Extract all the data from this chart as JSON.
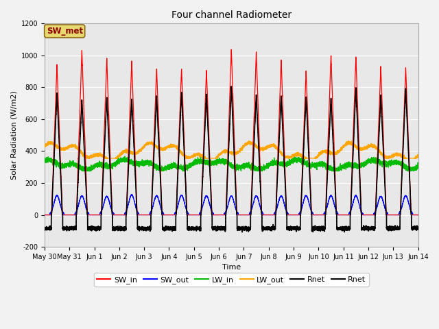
{
  "title": "Four channel Radiometer",
  "xlabel": "Time",
  "ylabel": "Solar Radiation (W/m2)",
  "ylim": [
    -200,
    1200
  ],
  "fig_facecolor": "#f2f2f2",
  "axes_facecolor": "#e8e8e8",
  "annotation_text": "SW_met",
  "annotation_fg": "#8b0000",
  "annotation_bg": "#e8d870",
  "annotation_border": "#8b6914",
  "legend_entries": [
    "SW_in",
    "SW_out",
    "LW_in",
    "LW_out",
    "Rnet",
    "Rnet"
  ],
  "legend_colors": [
    "#ff0000",
    "#0000ff",
    "#00bb00",
    "#ffa500",
    "#000000",
    "#000000"
  ],
  "legend_linestyles": [
    "-",
    "-",
    "-",
    "-",
    "-",
    "-"
  ],
  "num_days": 15,
  "tick_labels": [
    "May 30",
    "May 31",
    "Jun 1",
    "Jun 2",
    "Jun 3",
    "Jun 4",
    "Jun 5",
    "Jun 6",
    "Jun 7",
    "Jun 8",
    "Jun 9",
    "Jun 10",
    "Jun 11",
    "Jun 12",
    "Jun 13",
    "Jun 14"
  ],
  "yticks": [
    -200,
    0,
    200,
    400,
    600,
    800,
    1000,
    1200
  ],
  "title_fontsize": 10,
  "axis_label_fontsize": 8,
  "tick_fontsize": 7,
  "legend_fontsize": 8
}
